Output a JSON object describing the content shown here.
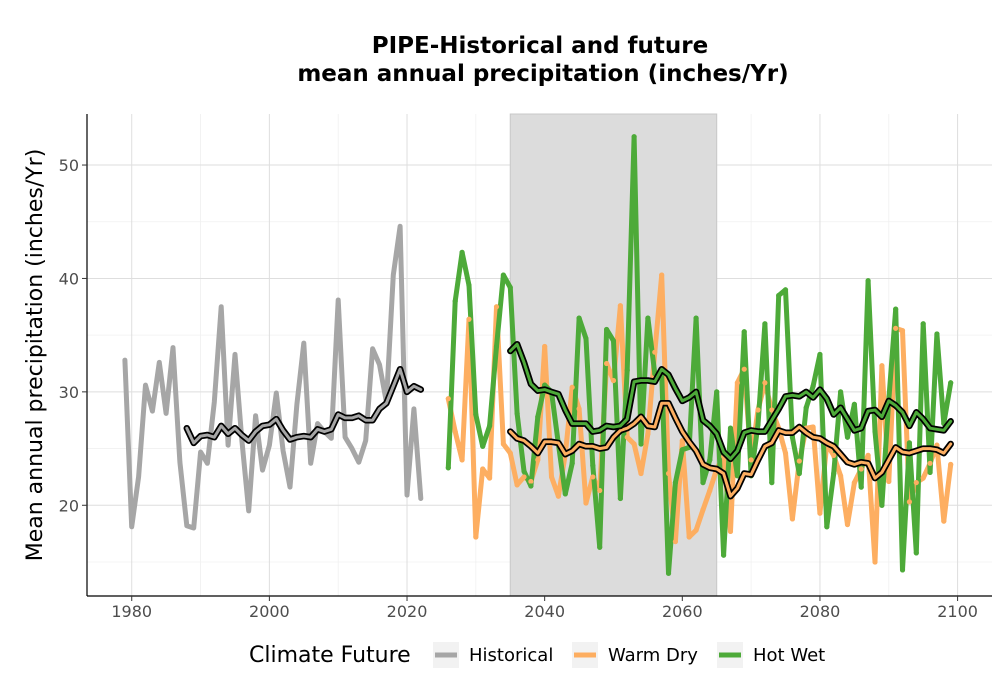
{
  "chart_data": {
    "type": "line",
    "title_line1": "PIPE-Historical and future",
    "title_line2": "mean annual precipitation (inches/Yr)",
    "xlabel": "",
    "ylabel": "Mean annual precipitation (inches/Yr)",
    "xlim": [
      1973.5,
      2105
    ],
    "ylim": [
      12,
      54.5
    ],
    "xticks": [
      1980,
      2000,
      2020,
      2040,
      2060,
      2080,
      2100
    ],
    "yticks": [
      20,
      30,
      40,
      50
    ],
    "grid": true,
    "shaded_period": [
      2035,
      2065
    ],
    "legend": {
      "title": "Climate Future",
      "position": "bottom",
      "entries": [
        "Historical",
        "Warm Dry",
        "Hot Wet"
      ]
    },
    "colors": {
      "Historical": "#a6a6a6",
      "Warm Dry": "#fdae61",
      "Hot Wet": "#4daa39",
      "shade": "#dcdcdc",
      "smooth": "#000000"
    },
    "series": [
      {
        "name": "Historical",
        "x": [
          1979,
          1980,
          1981,
          1982,
          1983,
          1984,
          1985,
          1986,
          1987,
          1988,
          1989,
          1990,
          1991,
          1992,
          1993,
          1994,
          1995,
          1996,
          1997,
          1998,
          1999,
          2000,
          2001,
          2002,
          2003,
          2004,
          2005,
          2006,
          2007,
          2008,
          2009,
          2010,
          2011,
          2012,
          2013,
          2014,
          2015,
          2016,
          2017,
          2018,
          2019,
          2020,
          2021,
          2022
        ],
        "values": [
          32.8,
          18.1,
          22.5,
          30.6,
          28.3,
          32.6,
          28.1,
          33.9,
          23.8,
          18.2,
          18.0,
          24.7,
          23.7,
          29.1,
          37.5,
          25.3,
          33.3,
          25.8,
          19.5,
          27.9,
          23.1,
          25.3,
          29.9,
          24.8,
          21.6,
          28.9,
          34.3,
          23.7,
          27.2,
          26.5,
          25.9,
          38.1,
          26.0,
          25.0,
          23.8,
          25.7,
          33.8,
          32.4,
          29.1,
          40.3,
          44.6,
          20.9,
          28.5,
          20.6
        ]
      },
      {
        "name": "Warm Dry",
        "x": [
          2026,
          2027,
          2028,
          2029,
          2030,
          2031,
          2032,
          2033,
          2034,
          2035,
          2036,
          2037,
          2038,
          2039,
          2040,
          2041,
          2042,
          2043,
          2044,
          2045,
          2046,
          2047,
          2048,
          2049,
          2050,
          2051,
          2052,
          2053,
          2054,
          2055,
          2056,
          2057,
          2058,
          2059,
          2060,
          2061,
          2062,
          2063,
          2064,
          2065,
          2066,
          2067,
          2068,
          2069,
          2070,
          2071,
          2072,
          2073,
          2074,
          2075,
          2076,
          2077,
          2078,
          2079,
          2080,
          2081,
          2082,
          2083,
          2084,
          2085,
          2086,
          2087,
          2088,
          2089,
          2090,
          2091,
          2092,
          2093,
          2094,
          2095,
          2096,
          2097,
          2098,
          2099
        ],
        "values": [
          29.4,
          26.5,
          24.0,
          36.4,
          17.2,
          23.2,
          22.4,
          37.5,
          25.4,
          24.6,
          21.8,
          22.5,
          22.1,
          24.0,
          34.0,
          22.5,
          20.8,
          24.5,
          30.4,
          28.5,
          20.2,
          22.5,
          21.3,
          32.5,
          31.0,
          37.6,
          26.0,
          25.4,
          22.8,
          26.3,
          33.5,
          40.3,
          22.8,
          16.8,
          25.7,
          17.2,
          17.8,
          19.6,
          21.3,
          23.2,
          24.3,
          17.7,
          30.8,
          32.0,
          24.0,
          28.4,
          30.8,
          28.4,
          26.8,
          24.6,
          18.8,
          23.9,
          26.8,
          26.9,
          19.3,
          25.4,
          24.4,
          22.6,
          18.3,
          22.0,
          23.2,
          24.4,
          15.0,
          32.3,
          22.1,
          35.6,
          35.4,
          20.3,
          22.0,
          22.4,
          23.7,
          25.3,
          18.6,
          23.6
        ]
      },
      {
        "name": "Hot Wet",
        "x": [
          2026,
          2027,
          2028,
          2029,
          2030,
          2031,
          2032,
          2033,
          2034,
          2035,
          2036,
          2037,
          2038,
          2039,
          2040,
          2041,
          2042,
          2043,
          2044,
          2045,
          2046,
          2047,
          2048,
          2049,
          2050,
          2051,
          2052,
          2053,
          2054,
          2055,
          2056,
          2057,
          2058,
          2059,
          2060,
          2061,
          2062,
          2063,
          2064,
          2065,
          2066,
          2067,
          2068,
          2069,
          2070,
          2071,
          2072,
          2073,
          2074,
          2075,
          2076,
          2077,
          2078,
          2079,
          2080,
          2081,
          2082,
          2083,
          2084,
          2085,
          2086,
          2087,
          2088,
          2089,
          2090,
          2091,
          2092,
          2093,
          2094,
          2095,
          2096,
          2097,
          2098,
          2099
        ],
        "values": [
          23.3,
          38.0,
          42.3,
          39.4,
          28.0,
          25.2,
          27.0,
          34.0,
          40.3,
          39.2,
          28.1,
          23.0,
          21.7,
          27.8,
          30.6,
          30.0,
          25.4,
          21.0,
          23.7,
          36.5,
          34.7,
          23.5,
          16.3,
          35.5,
          34.5,
          20.6,
          31.9,
          52.5,
          25.4,
          36.5,
          31.6,
          31.6,
          14.0,
          22.0,
          24.9,
          25.1,
          36.5,
          22.0,
          24.0,
          30.0,
          15.6,
          26.8,
          22.6,
          35.3,
          22.6,
          27.1,
          36.0,
          22.0,
          38.5,
          39.0,
          26.0,
          22.8,
          28.6,
          30.5,
          33.3,
          18.1,
          22.8,
          30.0,
          26.0,
          28.9,
          21.6,
          39.8,
          26.5,
          20.0,
          29.3,
          37.3,
          14.3,
          25.5,
          15.8,
          36.0,
          22.9,
          35.1,
          27.2,
          30.8
        ]
      },
      {
        "name": "Historical",
        "x": [
          1988,
          1989,
          1990,
          1991,
          1992,
          1993,
          1994,
          1995,
          1996,
          1997,
          1998,
          1999,
          2000,
          2001,
          2002,
          2003,
          2004,
          2005,
          2006,
          2007,
          2008,
          2009,
          2010,
          2011,
          2012,
          2013,
          2014,
          2015,
          2016,
          2017,
          2018,
          2019,
          2020,
          2021,
          2022
        ],
        "values": [
          26.8,
          25.5,
          26.1,
          26.2,
          26.0,
          27.0,
          26.3,
          26.8,
          26.2,
          25.7,
          26.5,
          27.0,
          27.1,
          27.6,
          26.6,
          25.8,
          26.0,
          26.1,
          26.0,
          26.7,
          26.5,
          26.7,
          28.0,
          27.7,
          27.7,
          27.9,
          27.5,
          27.5,
          28.5,
          29.0,
          30.5,
          32.0,
          30.0,
          30.5,
          30.2
        ]
      },
      {
        "name": "Warm Dry",
        "x": [
          2035,
          2036,
          2037,
          2038,
          2039,
          2040,
          2041,
          2042,
          2043,
          2044,
          2045,
          2046,
          2047,
          2048,
          2049,
          2050,
          2051,
          2052,
          2053,
          2054,
          2055,
          2056,
          2057,
          2058,
          2059,
          2060,
          2061,
          2062,
          2063,
          2064,
          2065,
          2066,
          2067,
          2068,
          2069,
          2070,
          2071,
          2072,
          2073,
          2074,
          2075,
          2076,
          2077,
          2078,
          2079,
          2080,
          2081,
          2082,
          2083,
          2084,
          2085,
          2086,
          2087,
          2088,
          2089,
          2090,
          2091,
          2092,
          2093,
          2094,
          2095,
          2096,
          2097,
          2098,
          2099
        ],
        "values": [
          26.5,
          25.9,
          25.7,
          25.2,
          24.6,
          25.6,
          25.6,
          25.5,
          24.5,
          24.8,
          25.4,
          25.2,
          25.2,
          25.0,
          25.1,
          26.0,
          26.6,
          26.8,
          27.2,
          27.8,
          27.0,
          26.9,
          29.0,
          29.0,
          27.7,
          26.5,
          25.6,
          24.8,
          23.6,
          23.3,
          23.2,
          22.8,
          20.8,
          21.5,
          22.8,
          22.7,
          24.0,
          25.2,
          25.5,
          26.6,
          26.4,
          26.4,
          26.9,
          26.4,
          26.0,
          25.9,
          25.5,
          25.2,
          24.5,
          23.8,
          23.6,
          23.8,
          23.7,
          22.4,
          22.9,
          24.0,
          25.1,
          24.7,
          24.6,
          24.8,
          25.0,
          25.0,
          24.9,
          24.6,
          25.4
        ]
      },
      {
        "name": "Hot Wet",
        "x": [
          2035,
          2036,
          2037,
          2038,
          2039,
          2040,
          2041,
          2042,
          2043,
          2044,
          2045,
          2046,
          2047,
          2048,
          2049,
          2050,
          2051,
          2052,
          2053,
          2054,
          2055,
          2056,
          2057,
          2058,
          2059,
          2060,
          2061,
          2062,
          2063,
          2064,
          2065,
          2066,
          2067,
          2068,
          2069,
          2070,
          2071,
          2072,
          2073,
          2074,
          2075,
          2076,
          2077,
          2078,
          2079,
          2080,
          2081,
          2082,
          2083,
          2084,
          2085,
          2086,
          2087,
          2088,
          2089,
          2090,
          2091,
          2092,
          2093,
          2094,
          2095,
          2096,
          2097,
          2098,
          2099
        ],
        "values": [
          33.6,
          34.2,
          32.6,
          30.7,
          30.1,
          30.2,
          30.0,
          29.8,
          28.4,
          27.2,
          27.2,
          27.2,
          26.5,
          26.6,
          27.0,
          26.9,
          27.0,
          27.6,
          30.9,
          31.0,
          31.0,
          30.9,
          32.0,
          31.5,
          30.3,
          29.2,
          29.5,
          30.0,
          27.5,
          27.0,
          26.3,
          24.7,
          24.1,
          24.8,
          26.4,
          26.6,
          26.5,
          26.5,
          27.5,
          28.5,
          29.6,
          29.7,
          29.6,
          30.0,
          29.5,
          30.2,
          29.4,
          28.0,
          28.6,
          27.6,
          26.6,
          26.8,
          28.3,
          28.4,
          27.8,
          29.2,
          28.8,
          28.2,
          27.0,
          28.2,
          27.6,
          26.8,
          26.7,
          26.6,
          27.4
        ]
      }
    ]
  }
}
